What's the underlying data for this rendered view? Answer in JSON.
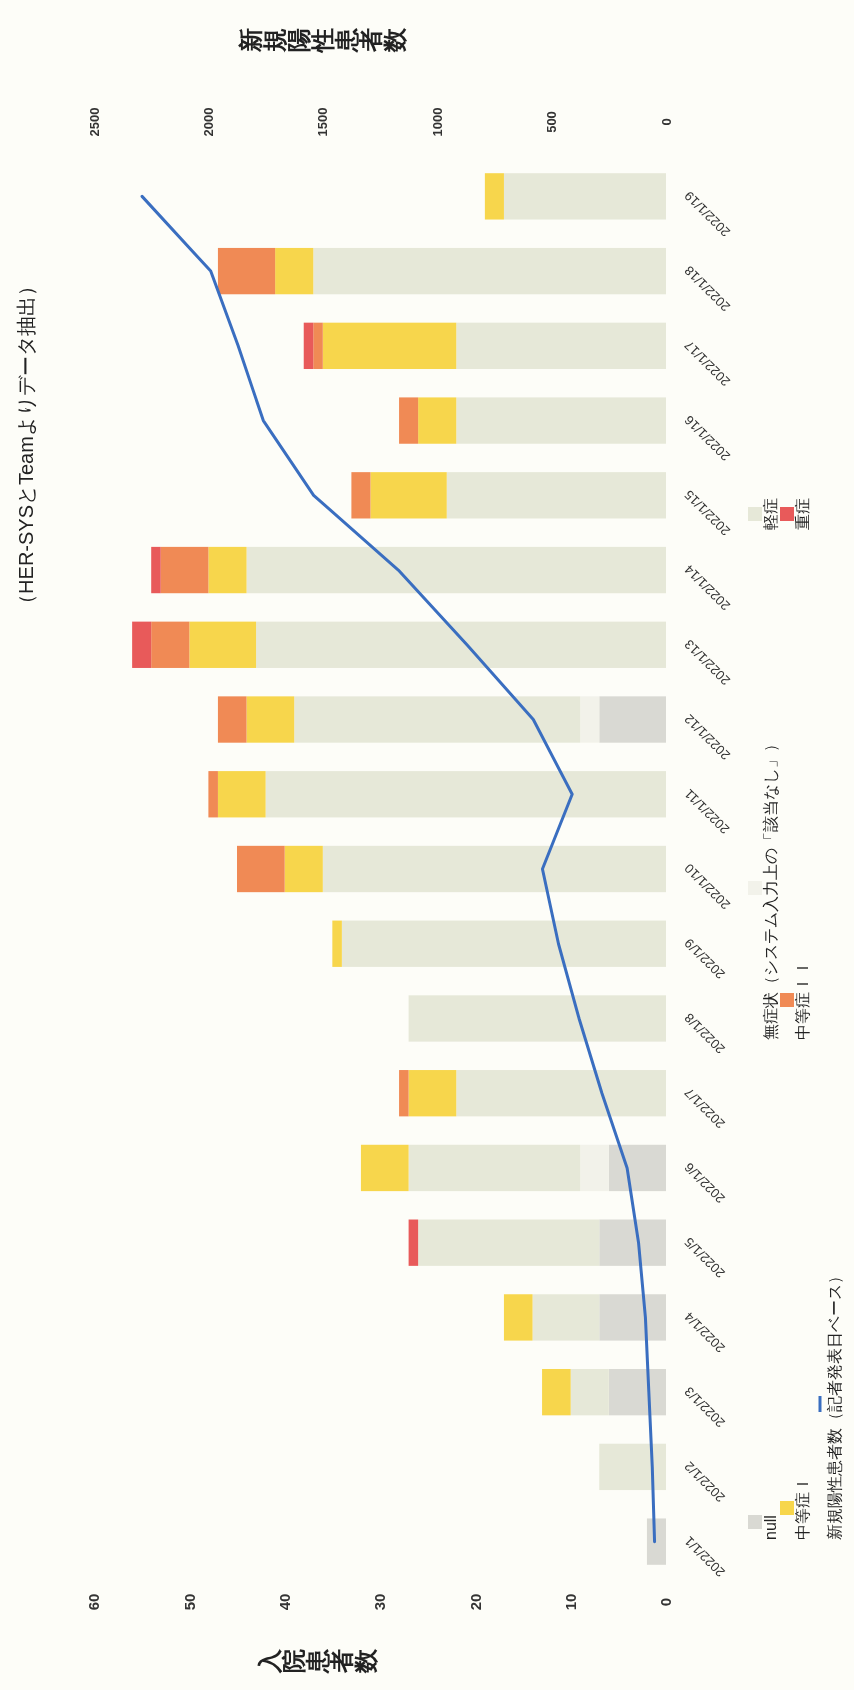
{
  "chart_data": {
    "type": "bar",
    "orientation": "horizontal",
    "title": "（HER-SYSとTeamよりデータ抽出）",
    "xlabel": "入院患者数",
    "x2label": "新規陽性患者数",
    "categories": [
      "2022/1/19",
      "2022/1/18",
      "2022/1/17",
      "2022/1/16",
      "2022/1/15",
      "2022/1/14",
      "2022/1/13",
      "2022/1/12",
      "2022/1/11",
      "2022/1/10",
      "2022/1/9",
      "2022/1/8",
      "2022/1/7",
      "2022/1/6",
      "2022/1/5",
      "2022/1/4",
      "2022/1/3",
      "2022/1/2",
      "2022/1/1"
    ],
    "stacked": true,
    "series": [
      {
        "name": "null",
        "type": "bar",
        "color": "#d9d9d3",
        "values": [
          0,
          0,
          0,
          0,
          0,
          0,
          0,
          7,
          0,
          0,
          0,
          0,
          0,
          6,
          7,
          7,
          6,
          0,
          2
        ]
      },
      {
        "name": "無症状（システム入力上の「該当なし」）",
        "type": "bar",
        "color": "#f2f2ea",
        "values": [
          0,
          0,
          0,
          0,
          0,
          0,
          0,
          2,
          0,
          0,
          0,
          0,
          0,
          3,
          0,
          0,
          0,
          0,
          0
        ]
      },
      {
        "name": "軽症",
        "type": "bar",
        "color": "#e6e8d8",
        "values": [
          17,
          37,
          22,
          22,
          23,
          44,
          43,
          30,
          42,
          36,
          34,
          27,
          22,
          18,
          19,
          7,
          4,
          7,
          0
        ]
      },
      {
        "name": "中等症Ｉ",
        "type": "bar",
        "color": "#f7d64c",
        "values": [
          2,
          4,
          14,
          4,
          8,
          4,
          7,
          5,
          5,
          4,
          1,
          0,
          5,
          5,
          0,
          3,
          3,
          0,
          0
        ]
      },
      {
        "name": "中等症ＩＩ",
        "type": "bar",
        "color": "#f08a55",
        "values": [
          0,
          6,
          1,
          2,
          2,
          5,
          4,
          3,
          1,
          5,
          0,
          0,
          1,
          0,
          0,
          0,
          0,
          0,
          0
        ]
      },
      {
        "name": "重症",
        "type": "bar",
        "color": "#e85a5a",
        "values": [
          0,
          0,
          1,
          0,
          0,
          1,
          2,
          0,
          0,
          0,
          0,
          0,
          0,
          0,
          1,
          0,
          0,
          0,
          0
        ]
      },
      {
        "name": "新規陽性患者数（記者発表日ベース）",
        "type": "line",
        "axis": "x2",
        "color": "#3a6ec0",
        "values": [
          2290,
          1990,
          1870,
          1760,
          1540,
          1170,
          870,
          580,
          410,
          540,
          470,
          380,
          280,
          170,
          120,
          90,
          75,
          60,
          50
        ]
      }
    ],
    "xlim": [
      60,
      0
    ],
    "xticks": [
      0,
      10,
      20,
      30,
      40,
      50,
      60
    ],
    "x2lim": [
      2500,
      0
    ],
    "x2ticks": [
      0,
      500,
      1000,
      1500,
      2000,
      2500
    ],
    "grid": false,
    "legend": "right",
    "marker": "none",
    "line_style": "solid"
  }
}
